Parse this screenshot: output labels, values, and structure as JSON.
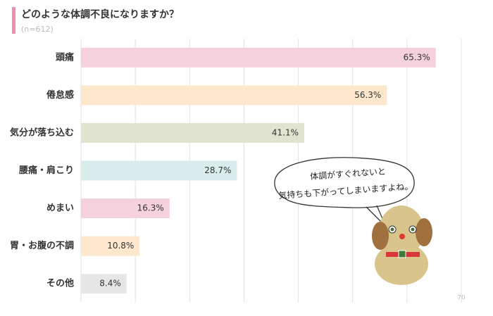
{
  "chart_data": {
    "type": "barh",
    "title": "どのような体調不良になりますか？",
    "subtitle": "(n=612)",
    "categories": [
      "頭痛",
      "倦怠感",
      "気分が落ち込む",
      "腰痛・肩こり",
      "めまい",
      "胃・お腹の不調",
      "その他"
    ],
    "values": [
      65.3,
      56.3,
      41.1,
      28.7,
      16.3,
      10.8,
      8.4
    ],
    "value_labels": [
      "65.3%",
      "56.3%",
      "41.1%",
      "28.7%",
      "16.3%",
      "10.8%",
      "8.4%"
    ],
    "colors": [
      "#f5d0dd",
      "#fde8cd",
      "#e0e4cf",
      "#d9ecec",
      "#f5d0dd",
      "#fde8cd",
      "#e6e6e6"
    ],
    "xlim": [
      0,
      70
    ],
    "xticks": [
      70
    ],
    "gridlines": [
      0,
      10,
      20,
      30,
      40,
      50,
      60,
      70
    ],
    "annotation": [
      "体調がすぐれないと",
      "気持ちも下がってしまいますよね。"
    ]
  }
}
